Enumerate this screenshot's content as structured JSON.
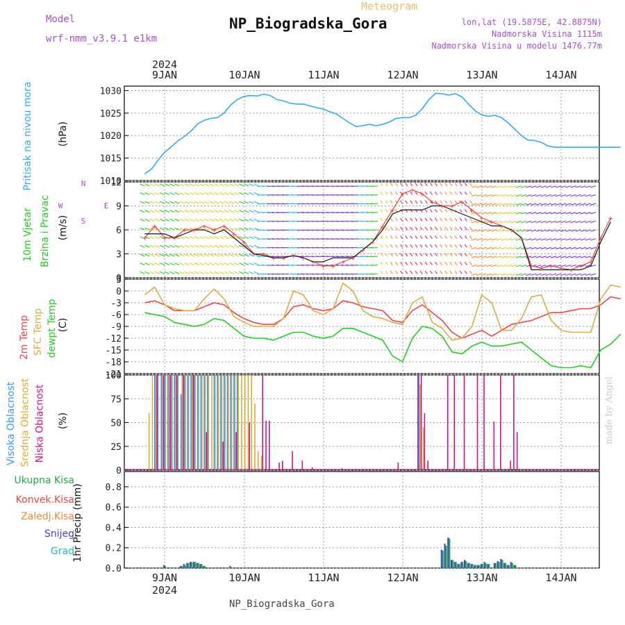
{
  "header": {
    "meteogram": "Meteogram",
    "model_label": "Model",
    "model_name": "wrf-nmm_v3.9.1 e1km",
    "station": "NP_Biogradska_Gora",
    "lonlat": "lon,lat (19.5875E, 42.8875N)",
    "elevation": "Nadmorska Visina 1115m",
    "elevation_model": "Nadmorska Visina u modelu 1476.77m",
    "made_by": "made by Angel",
    "footer_station": "NP_Biogradska_Gora"
  },
  "time_axis": {
    "year": "2024",
    "day_labels": [
      "9JAN",
      "10JAN",
      "11JAN",
      "12JAN",
      "13JAN",
      "14JAN"
    ]
  },
  "colors": {
    "pressure": "#33aaee",
    "temp": "#ee4444",
    "sfc_temp": "#ddaa44",
    "dewpt": "#22cc22",
    "high_cloud": "#3399ff",
    "mid_cloud": "#ddaa33",
    "low_cloud": "#cc1188",
    "total_precip": "#22aa44",
    "snow": "#4444cc",
    "conv": "#ee4444",
    "frz": "#ee8833",
    "hail": "#22bbbb",
    "wind_label": "#22cc22",
    "dir_label": "#a84fd1"
  },
  "chart_data": [
    {
      "type": "line",
      "panel": "pressure",
      "ylabel_main": "Pritisak na nivou mora",
      "ylabel_unit": "(hPa)",
      "yticks": [
        1010,
        1015,
        1020,
        1025,
        1030
      ],
      "ylim": [
        1010,
        1031
      ],
      "x_hours": [
        0,
        2,
        4,
        6,
        8,
        10,
        12,
        14,
        16,
        18,
        20,
        22,
        24,
        26,
        28,
        30,
        32,
        34,
        36,
        38,
        40,
        42,
        44,
        46,
        48,
        50,
        52,
        54,
        56,
        58,
        60,
        62,
        64,
        66,
        68,
        70,
        72,
        74,
        76,
        78,
        80,
        82,
        84,
        86,
        88,
        90,
        92,
        94,
        96,
        98,
        100,
        102,
        104,
        106,
        108,
        110,
        112,
        114,
        116,
        118,
        120,
        122,
        124,
        126,
        128,
        130,
        132,
        134,
        136,
        138,
        140,
        142,
        144
      ],
      "values": [
        1011.5,
        1012.5,
        1014.5,
        1016.3,
        1017.5,
        1018.8,
        1019.8,
        1021.0,
        1022.6,
        1023.4,
        1023.8,
        1024.0,
        1025.0,
        1026.8,
        1028.0,
        1028.7,
        1028.9,
        1028.8,
        1029.2,
        1028.9,
        1028.0,
        1027.7,
        1027.2,
        1027.0,
        1027.0,
        1026.6,
        1026.2,
        1025.9,
        1025.3,
        1024.8,
        1023.8,
        1022.8,
        1022.0,
        1022.2,
        1022.5,
        1022.2,
        1022.5,
        1023.0,
        1023.8,
        1024.0,
        1024.0,
        1024.5,
        1026.0,
        1028.0,
        1029.4,
        1029.3,
        1029.0,
        1029.3,
        1028.6,
        1027.0,
        1025.5,
        1024.6,
        1024.3,
        1024.5,
        1024.0,
        1022.8,
        1021.4,
        1020.0,
        1019.0,
        1018.9,
        1018.5,
        1017.7,
        1017.4,
        1017.4,
        1017.4,
        1017.4,
        1017.4,
        1017.4,
        1017.4,
        1017.4,
        1017.4,
        1017.4,
        1017.4
      ]
    },
    {
      "type": "line",
      "panel": "wind",
      "ylabel_main": "10m Vjetar",
      "ylabel_sub": "Brzina i Pravac",
      "ylabel_unit": "(m/s)",
      "dir_legend": "N",
      "dir_legend_w": "W",
      "dir_legend_e": "E",
      "dir_legend_s": "S",
      "yticks": [
        0,
        3,
        6,
        9,
        12
      ],
      "ylim": [
        0,
        12
      ],
      "x_hours": [
        0,
        3,
        6,
        9,
        12,
        15,
        18,
        21,
        24,
        27,
        30,
        33,
        36,
        39,
        42,
        45,
        48,
        51,
        54,
        57,
        60,
        63,
        66,
        69,
        72,
        75,
        78,
        81,
        84,
        87,
        90,
        93,
        96,
        99,
        102,
        105,
        108,
        111,
        114,
        117,
        120,
        123,
        126,
        129,
        132,
        135,
        138,
        141
      ],
      "speed": [
        5.0,
        6.5,
        5.0,
        5.0,
        6.0,
        6.0,
        6.5,
        6.0,
        6.5,
        5.5,
        4.5,
        3.0,
        3.0,
        2.5,
        2.5,
        2.8,
        2.5,
        2.0,
        1.5,
        1.5,
        2.0,
        2.5,
        3.5,
        4.5,
        6.5,
        8.5,
        10.5,
        11.0,
        10.5,
        9.5,
        9.0,
        9.0,
        9.5,
        8.5,
        7.5,
        7.0,
        6.5,
        6.0,
        5.0,
        1.5,
        1.2,
        1.5,
        1.2,
        1.0,
        1.5,
        2.0,
        5.0,
        7.5
      ],
      "mean": [
        5.5,
        5.5,
        5.5,
        5.0,
        5.5,
        6.0,
        6.0,
        5.5,
        6.0,
        5.0,
        4.0,
        3.0,
        2.8,
        2.5,
        2.5,
        2.8,
        2.5,
        2.0,
        2.0,
        2.5,
        2.5,
        2.5,
        3.5,
        4.5,
        6.0,
        8.0,
        8.5,
        8.5,
        8.5,
        9.0,
        9.0,
        8.5,
        8.0,
        7.5,
        7.0,
        6.5,
        6.5,
        6.0,
        5.0,
        1.0,
        1.0,
        1.0,
        1.0,
        1.0,
        1.0,
        1.5,
        4.5,
        7.0
      ]
    },
    {
      "type": "line",
      "panel": "temperature",
      "ylabel_temp": "2m Temp",
      "ylabel_sfc": "SFC Temp",
      "ylabel_dew": "dewpt Temp",
      "ylabel_unit": "(C)",
      "yticks": [
        3,
        0,
        -3,
        -6,
        -9,
        -12,
        -15,
        -18,
        -21
      ],
      "ylim": [
        -21,
        3
      ],
      "x_hours": [
        0,
        3,
        6,
        9,
        12,
        15,
        18,
        21,
        24,
        27,
        30,
        33,
        36,
        39,
        42,
        45,
        48,
        51,
        54,
        57,
        60,
        63,
        66,
        69,
        72,
        75,
        78,
        81,
        84,
        87,
        90,
        93,
        96,
        99,
        102,
        105,
        108,
        111,
        114,
        117,
        120,
        123,
        126,
        129,
        132,
        135,
        138,
        141,
        144
      ],
      "series": [
        {
          "name": "2m Temp",
          "values": [
            -3.0,
            -2.5,
            -3.5,
            -5.0,
            -5.0,
            -5.0,
            -4.0,
            -3.0,
            -3.5,
            -5.5,
            -7.0,
            -8.0,
            -8.5,
            -8.5,
            -7.0,
            -4.0,
            -3.5,
            -4.5,
            -5.0,
            -4.5,
            -2.5,
            -3.0,
            -4.0,
            -4.5,
            -5.0,
            -7.5,
            -8.0,
            -5.0,
            -3.5,
            -5.5,
            -7.5,
            -10.5,
            -12.0,
            -11.0,
            -10.0,
            -11.5,
            -10.0,
            -8.5,
            -8.0,
            -7.5,
            -6.5,
            -5.5,
            -5.5,
            -5.0,
            -4.5,
            -4.5,
            -3.5,
            -1.5,
            -2.0
          ]
        },
        {
          "name": "SFC Temp",
          "values": [
            -1.0,
            1.0,
            -3.5,
            -4.5,
            -5.0,
            -5.0,
            -2.0,
            0.5,
            -2.0,
            -6.5,
            -8.0,
            -9.0,
            -9.0,
            -9.0,
            -7.0,
            0.0,
            -1.0,
            -5.0,
            -6.0,
            -4.5,
            2.0,
            0.0,
            -5.0,
            -6.5,
            -7.0,
            -8.0,
            -8.5,
            -3.0,
            -1.5,
            -8.0,
            -9.5,
            -12.5,
            -12.0,
            -9.0,
            -1.0,
            -3.0,
            -10.0,
            -10.0,
            -7.0,
            -1.5,
            -1.0,
            -7.5,
            -10.0,
            -10.5,
            -10.5,
            -10.5,
            -2.0,
            1.5,
            1.0
          ]
        },
        {
          "name": "dewpt Temp",
          "values": [
            -5.5,
            -6.0,
            -6.5,
            -8.0,
            -8.5,
            -9.0,
            -8.5,
            -7.0,
            -7.5,
            -9.5,
            -11.5,
            -12.0,
            -12.0,
            -12.5,
            -11.5,
            -10.5,
            -10.5,
            -11.5,
            -12.0,
            -11.5,
            -9.5,
            -9.5,
            -10.5,
            -11.5,
            -12.5,
            -16.5,
            -18.0,
            -12.0,
            -9.0,
            -9.5,
            -11.5,
            -15.5,
            -16.0,
            -14.0,
            -13.0,
            -14.0,
            -14.0,
            -13.5,
            -13.0,
            -15.0,
            -17.0,
            -19.0,
            -19.5,
            -19.5,
            -19.0,
            -19.5,
            -15.0,
            -13.5,
            -11.0
          ]
        }
      ]
    },
    {
      "type": "bar",
      "panel": "clouds",
      "ylabel_high": "Visoka Oblacnost",
      "ylabel_mid": "Srednja Oblacnost",
      "ylabel_low": "Niska Oblacnost",
      "ylabel_unit": "(%)",
      "yticks": [
        0,
        25,
        50,
        75,
        100
      ],
      "ylim": [
        0,
        100
      ],
      "high_hours": [
        3,
        4,
        5,
        6,
        7,
        8,
        9,
        10,
        11,
        12,
        13,
        14,
        15,
        16,
        17,
        18,
        19,
        21,
        22,
        23,
        24,
        25,
        26,
        27,
        28,
        83
      ],
      "high_values": [
        100,
        100,
        100,
        100,
        100,
        100,
        100,
        100,
        80,
        100,
        100,
        100,
        100,
        100,
        100,
        100,
        100,
        100,
        100,
        100,
        100,
        100,
        100,
        100,
        100,
        100
      ],
      "mid_hours": [
        1,
        2,
        3,
        5,
        6,
        7,
        8,
        9,
        11,
        12,
        13,
        14,
        15,
        16,
        17,
        18,
        19,
        20,
        21,
        22,
        23,
        24,
        25,
        26,
        27,
        28,
        29,
        30,
        31,
        32,
        33,
        34,
        35,
        83,
        84
      ],
      "mid_values": [
        60,
        100,
        100,
        100,
        100,
        100,
        100,
        100,
        100,
        100,
        100,
        100,
        100,
        100,
        100,
        100,
        100,
        100,
        100,
        100,
        100,
        100,
        100,
        100,
        100,
        100,
        100,
        100,
        100,
        100,
        70,
        20,
        15,
        90,
        45
      ],
      "low_hours": [
        4,
        6,
        8,
        10,
        12,
        15,
        19,
        24,
        28,
        32,
        36,
        37,
        38,
        41,
        42,
        45,
        48,
        51,
        60,
        77,
        83,
        84,
        85,
        86,
        92,
        94,
        97,
        101,
        103,
        106,
        108,
        111,
        112,
        113
      ],
      "low_values": [
        100,
        100,
        100,
        100,
        100,
        100,
        40,
        30,
        40,
        50,
        100,
        52,
        52,
        8,
        10,
        20,
        10,
        3,
        2,
        8,
        100,
        100,
        60,
        10,
        100,
        100,
        100,
        100,
        100,
        51,
        100,
        10,
        100,
        40
      ]
    },
    {
      "type": "bar",
      "panel": "precip",
      "ylabel_unit": "1hr Precip (mm)",
      "legend": [
        "Ukupna Kisa",
        "Konvek.Kisa",
        "Zaledj.Kisa",
        "Snijeg",
        "Grad"
      ],
      "yticks": [
        0,
        0.2,
        0.4,
        0.6,
        0.8
      ],
      "ylim": [
        0,
        0.95
      ],
      "hours": [
        6,
        11,
        12,
        13,
        14,
        15,
        16,
        17,
        18,
        26,
        90,
        91,
        92,
        93,
        94,
        95,
        96,
        97,
        98,
        99,
        100,
        101,
        102,
        103,
        104,
        106,
        107,
        108,
        109,
        110,
        111,
        112
      ],
      "snow": [
        0.03,
        0.02,
        0.04,
        0.05,
        0.06,
        0.06,
        0.05,
        0.04,
        0.02,
        0.02,
        0.18,
        0.24,
        0.3,
        0.08,
        0.06,
        0.04,
        0.06,
        0.08,
        0.05,
        0.04,
        0.03,
        0.03,
        0.04,
        0.06,
        0.04,
        0.05,
        0.07,
        0.09,
        0.05,
        0.03,
        0.06,
        0.03
      ],
      "total": [
        0.02,
        0.02,
        0.03,
        0.05,
        0.06,
        0.06,
        0.05,
        0.04,
        0.02,
        0.01,
        0.17,
        0.22,
        0.29,
        0.08,
        0.06,
        0.04,
        0.06,
        0.07,
        0.05,
        0.04,
        0.03,
        0.03,
        0.04,
        0.05,
        0.04,
        0.05,
        0.06,
        0.08,
        0.05,
        0.03,
        0.05,
        0.03
      ]
    }
  ]
}
